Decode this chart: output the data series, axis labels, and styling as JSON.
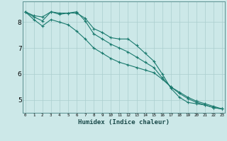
{
  "xlabel": "Humidex (Indice chaleur)",
  "ylabel": "",
  "bg_color": "#cce8e8",
  "grid_color": "#aacece",
  "line_color": "#1a7a6e",
  "x_ticks": [
    0,
    1,
    2,
    3,
    4,
    5,
    6,
    7,
    8,
    9,
    10,
    11,
    12,
    13,
    14,
    15,
    16,
    17,
    18,
    19,
    20,
    21,
    22,
    23
  ],
  "xlim": [
    -0.3,
    23.3
  ],
  "ylim": [
    4.5,
    8.8
  ],
  "yticks": [
    5,
    6,
    7,
    8
  ],
  "series": [
    [
      8.4,
      8.25,
      8.2,
      8.4,
      8.35,
      8.35,
      8.35,
      8.15,
      7.75,
      7.6,
      7.4,
      7.35,
      7.35,
      7.1,
      6.8,
      6.5,
      6.0,
      5.45,
      5.1,
      4.9,
      4.85,
      4.8,
      4.7,
      4.65
    ],
    [
      8.4,
      8.2,
      8.05,
      8.4,
      8.3,
      8.35,
      8.4,
      8.05,
      7.55,
      7.35,
      7.15,
      7.0,
      6.85,
      6.65,
      6.45,
      6.25,
      5.85,
      5.5,
      5.25,
      5.05,
      4.9,
      4.8,
      4.7,
      4.65
    ],
    [
      8.4,
      8.1,
      7.85,
      8.1,
      8.0,
      7.9,
      7.65,
      7.35,
      7.0,
      6.8,
      6.6,
      6.45,
      6.35,
      6.25,
      6.15,
      6.05,
      5.8,
      5.5,
      5.3,
      5.1,
      4.95,
      4.85,
      4.75,
      4.65
    ]
  ]
}
